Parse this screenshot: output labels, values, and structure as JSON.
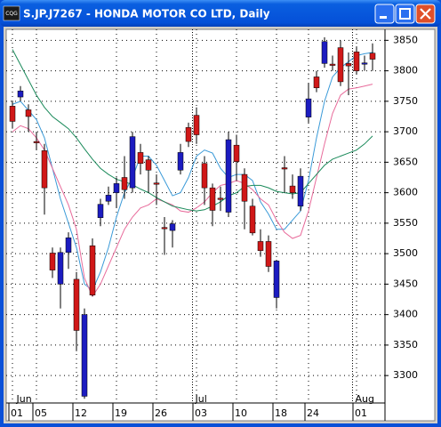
{
  "window": {
    "title": "S.JP.J7267 - HONDA MOTOR CO LTD, Daily",
    "icon_text": "CQG"
  },
  "chart_data": {
    "type": "candlestick",
    "categories": [
      "01",
      null,
      null,
      "05",
      null,
      null,
      null,
      null,
      "12",
      null,
      null,
      null,
      null,
      "19",
      null,
      null,
      null,
      null,
      "26",
      null,
      null,
      null,
      null,
      "03",
      null,
      null,
      null,
      null,
      "10",
      null,
      null,
      null,
      null,
      "18",
      null,
      null,
      null,
      "24",
      null,
      null,
      null,
      null,
      null,
      "01",
      null,
      null
    ],
    "months": [
      {
        "label": "Jun",
        "index": 0
      },
      {
        "label": "Jul",
        "index": 23
      },
      {
        "label": "Aug",
        "index": 43
      }
    ],
    "open": [
      3742,
      3757,
      3736,
      3684,
      3669,
      3501,
      3450,
      3502,
      3458,
      3266,
      3513,
      3559,
      3586,
      3600,
      3625,
      3608,
      3666,
      3654,
      3616,
      3543,
      3538,
      3637,
      3707,
      3727,
      3648,
      3608,
      3591,
      3568,
      3678,
      3630,
      3578,
      3520,
      3520,
      3428,
      3641,
      3611,
      3578,
      3724,
      3790,
      3812,
      3811,
      3838,
      3812,
      3831,
      3811,
      3829
    ],
    "high": [
      3750,
      3775,
      3745,
      3700,
      3680,
      3510,
      3510,
      3535,
      3470,
      3410,
      3525,
      3590,
      3610,
      3625,
      3660,
      3700,
      3680,
      3660,
      3630,
      3560,
      3555,
      3680,
      3715,
      3740,
      3660,
      3615,
      3610,
      3700,
      3695,
      3640,
      3590,
      3540,
      3530,
      3490,
      3660,
      3630,
      3640,
      3780,
      3800,
      3855,
      3825,
      3850,
      3830,
      3840,
      3825,
      3845
    ],
    "low": [
      3705,
      3750,
      3700,
      3670,
      3564,
      3460,
      3410,
      3475,
      3340,
      3262,
      3430,
      3545,
      3580,
      3575,
      3590,
      3600,
      3630,
      3600,
      3580,
      3498,
      3510,
      3630,
      3675,
      3680,
      3580,
      3545,
      3570,
      3560,
      3620,
      3540,
      3530,
      3495,
      3470,
      3410,
      3600,
      3590,
      3570,
      3715,
      3765,
      3805,
      3800,
      3775,
      3760,
      3795,
      3800,
      3800
    ],
    "close": [
      3717,
      3767,
      3725,
      3682,
      3608,
      3473,
      3502,
      3526,
      3374,
      3400,
      3432,
      3581,
      3596,
      3615,
      3605,
      3692,
      3648,
      3637,
      3614,
      3541,
      3549,
      3666,
      3684,
      3695,
      3608,
      3571,
      3589,
      3687,
      3651,
      3586,
      3534,
      3505,
      3479,
      3488,
      3639,
      3600,
      3627,
      3754,
      3772,
      3848,
      3809,
      3782,
      3808,
      3800,
      3813,
      3819
    ],
    "up_color": "#1c1cc0",
    "down_color": "#d01818",
    "series": [
      {
        "color": "#3a9ad8",
        "values": [
          3745,
          3750,
          3735,
          3720,
          3690,
          3640,
          3590,
          3550,
          3510,
          3450,
          3440,
          3470,
          3510,
          3560,
          3600,
          3625,
          3660,
          3660,
          3645,
          3620,
          3595,
          3600,
          3625,
          3660,
          3670,
          3665,
          3640,
          3625,
          3630,
          3630,
          3620,
          3585,
          3565,
          3540,
          3540,
          3555,
          3570,
          3620,
          3690,
          3750,
          3790,
          3805,
          3815,
          3825,
          3828,
          3830
        ]
      },
      {
        "color": "#e86a9a",
        "values": [
          3700,
          3710,
          3705,
          3690,
          3670,
          3640,
          3610,
          3580,
          3540,
          3460,
          3430,
          3450,
          3480,
          3510,
          3540,
          3560,
          3575,
          3580,
          3590,
          3585,
          3580,
          3570,
          3568,
          3575,
          3585,
          3600,
          3612,
          3615,
          3620,
          3615,
          3605,
          3590,
          3580,
          3555,
          3535,
          3525,
          3530,
          3570,
          3625,
          3680,
          3730,
          3760,
          3770,
          3772,
          3775,
          3778
        ]
      },
      {
        "color": "#1a8a5a",
        "values": [
          3835,
          3810,
          3785,
          3760,
          3740,
          3725,
          3715,
          3705,
          3690,
          3672,
          3655,
          3640,
          3630,
          3622,
          3618,
          3613,
          3606,
          3600,
          3592,
          3585,
          3578,
          3575,
          3572,
          3570,
          3572,
          3578,
          3585,
          3595,
          3600,
          3610,
          3612,
          3612,
          3608,
          3602,
          3600,
          3598,
          3600,
          3615,
          3630,
          3645,
          3655,
          3660,
          3665,
          3670,
          3680,
          3693
        ]
      }
    ],
    "ylim": [
      3255,
      3868
    ],
    "yticks": [
      3300,
      3350,
      3400,
      3450,
      3500,
      3550,
      3600,
      3650,
      3700,
      3750,
      3800,
      3850
    ],
    "grid": true
  }
}
